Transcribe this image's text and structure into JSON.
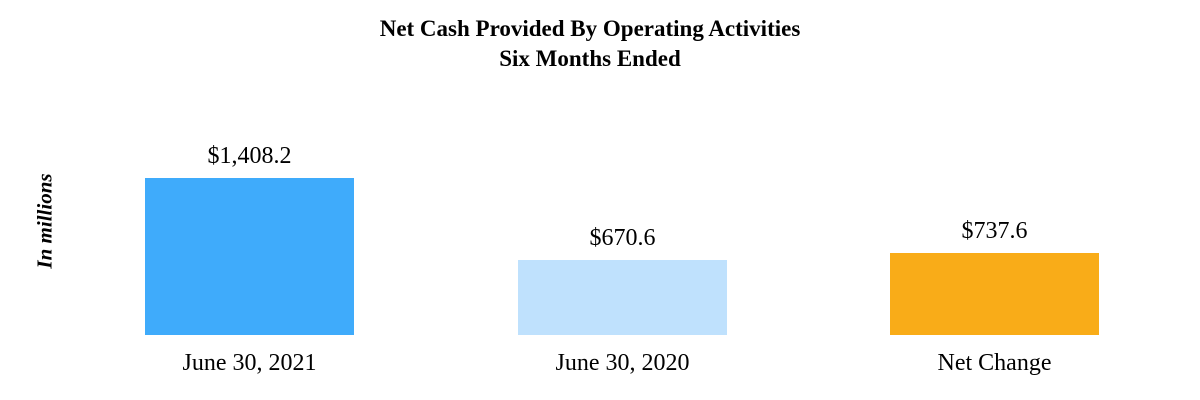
{
  "title": {
    "line1": "Net Cash Provided By Operating Activities",
    "line2": "Six Months Ended"
  },
  "y_axis_label": "In millions",
  "chart_data": {
    "type": "bar",
    "title": "Net Cash Provided By Operating Activities - Six Months Ended",
    "ylabel": "In millions",
    "xlabel": "",
    "categories": [
      "June 30, 2021",
      "June 30, 2020",
      "Net Change"
    ],
    "values": [
      1408.2,
      670.6,
      737.6
    ],
    "value_labels": [
      "$1,408.2",
      "$670.6",
      "$737.6"
    ],
    "bar_colors": [
      "#3FABFB",
      "#BFE1FD",
      "#F9AC18"
    ],
    "ylim": [
      0,
      1500
    ],
    "grid": false,
    "legend": false,
    "axes_hidden": true
  }
}
